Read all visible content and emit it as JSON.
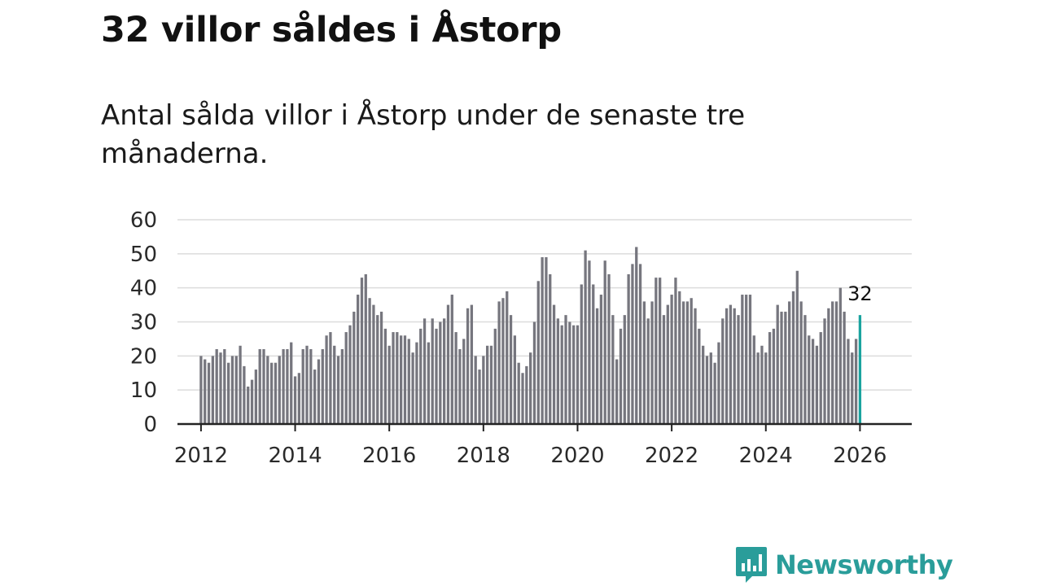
{
  "title": "32 villor såldes i Åstorp",
  "subtitle": "Antal sålda villor i Åstorp under de senaste tre månaderna.",
  "logo": {
    "icon": "newsworthy-logo-icon",
    "text": "Newsworthy",
    "color": "#2a9d9a"
  },
  "chart_data": {
    "type": "bar",
    "title": "32 villor såldes i Åstorp",
    "subtitle": "Antal sålda villor i Åstorp under de senaste tre månaderna.",
    "xlabel": "",
    "ylabel": "",
    "ylim": [
      0,
      60
    ],
    "yticks": [
      0,
      10,
      20,
      30,
      40,
      50,
      60
    ],
    "xticks": [
      "2012",
      "2014",
      "2016",
      "2018",
      "2020",
      "2022",
      "2024",
      "2026"
    ],
    "xrange": [
      2011.5,
      2027.1
    ],
    "x_start": 2012.0,
    "x_step_months": 1,
    "grid": true,
    "bar_color": "#76767e",
    "highlight_color": "#1aa39f",
    "highlight_label": "32",
    "values": [
      20,
      19,
      18,
      20,
      22,
      21,
      22,
      18,
      20,
      20,
      23,
      17,
      11,
      13,
      16,
      22,
      22,
      20,
      18,
      18,
      20,
      22,
      22,
      24,
      14,
      15,
      22,
      23,
      22,
      16,
      19,
      22,
      26,
      27,
      23,
      20,
      22,
      27,
      29,
      33,
      38,
      43,
      44,
      37,
      35,
      32,
      33,
      28,
      23,
      27,
      27,
      26,
      26,
      25,
      21,
      24,
      28,
      31,
      24,
      31,
      28,
      30,
      31,
      35,
      38,
      27,
      22,
      25,
      34,
      35,
      20,
      16,
      20,
      23,
      23,
      28,
      36,
      37,
      39,
      32,
      26,
      18,
      15,
      17,
      21,
      30,
      42,
      49,
      49,
      44,
      35,
      31,
      29,
      32,
      30,
      29,
      29,
      41,
      51,
      48,
      41,
      34,
      38,
      48,
      44,
      32,
      19,
      28,
      32,
      44,
      47,
      52,
      47,
      36,
      31,
      36,
      43,
      43,
      32,
      35,
      38,
      43,
      39,
      36,
      36,
      37,
      34,
      28,
      23,
      20,
      21,
      18,
      24,
      31,
      34,
      35,
      34,
      32,
      38,
      38,
      38,
      26,
      21,
      23,
      21,
      27,
      28,
      35,
      33,
      33,
      36,
      39,
      45,
      36,
      32,
      26,
      25,
      23,
      27,
      31,
      34,
      36,
      36,
      40,
      33,
      25,
      21,
      25,
      32
    ]
  }
}
